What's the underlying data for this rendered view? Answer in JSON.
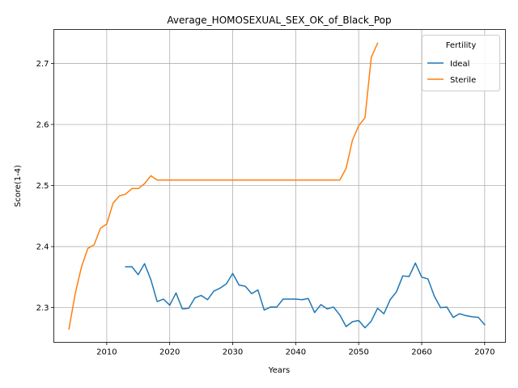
{
  "chart_data": {
    "type": "line",
    "title": "Average_HOMOSEXUAL_SEX_OK_of_Black_Pop",
    "xlabel": "Years",
    "ylabel": "Score(1-4)",
    "xlim": [
      2001.6,
      2073.3
    ],
    "ylim": [
      2.2432,
      2.7555
    ],
    "xticks": [
      2010,
      2020,
      2030,
      2040,
      2050,
      2060,
      2070
    ],
    "yticks": [
      2.3,
      2.4,
      2.5,
      2.6,
      2.7
    ],
    "ytick_labels": [
      "2.3",
      "2.4",
      "2.5",
      "2.6",
      "2.7"
    ],
    "grid": true,
    "legend": {
      "title": "Fertility",
      "position": "top-right"
    },
    "series": [
      {
        "name": "Ideal",
        "color": "#1f77b4",
        "x": [
          2013,
          2014,
          2015,
          2016,
          2017,
          2018,
          2019,
          2020,
          2021,
          2022,
          2023,
          2024,
          2025,
          2026,
          2027,
          2028,
          2029,
          2030,
          2031,
          2032,
          2033,
          2034,
          2035,
          2036,
          2037,
          2038,
          2039,
          2040,
          2041,
          2042,
          2043,
          2044,
          2045,
          2046,
          2047,
          2048,
          2049,
          2050,
          2051,
          2052,
          2053,
          2054,
          2055,
          2056,
          2057,
          2058,
          2059,
          2060,
          2061,
          2062,
          2063,
          2064,
          2065,
          2066,
          2067,
          2068,
          2069,
          2070
        ],
        "values": [
          2.367,
          2.367,
          2.354,
          2.372,
          2.346,
          2.31,
          2.314,
          2.304,
          2.324,
          2.298,
          2.299,
          2.316,
          2.32,
          2.313,
          2.327,
          2.332,
          2.339,
          2.356,
          2.337,
          2.335,
          2.323,
          2.329,
          2.296,
          2.301,
          2.301,
          2.314,
          2.314,
          2.314,
          2.313,
          2.315,
          2.292,
          2.305,
          2.298,
          2.301,
          2.288,
          2.269,
          2.277,
          2.279,
          2.267,
          2.278,
          2.299,
          2.29,
          2.313,
          2.326,
          2.352,
          2.351,
          2.373,
          2.35,
          2.347,
          2.319,
          2.3,
          2.301,
          2.284,
          2.29,
          2.287,
          2.285,
          2.284,
          2.272
        ]
      },
      {
        "name": "Sterile",
        "color": "#ff7f0e",
        "x": [
          2004,
          2005,
          2006,
          2007,
          2008,
          2009,
          2010,
          2011,
          2012,
          2013,
          2014,
          2015,
          2016,
          2017,
          2018,
          2019,
          2020,
          2021,
          2022,
          2023,
          2024,
          2025,
          2026,
          2027,
          2028,
          2029,
          2030,
          2031,
          2032,
          2033,
          2034,
          2035,
          2036,
          2037,
          2038,
          2039,
          2040,
          2041,
          2042,
          2043,
          2044,
          2045,
          2046,
          2047,
          2048,
          2049,
          2050,
          2051,
          2052,
          2053
        ],
        "values": [
          2.265,
          2.323,
          2.367,
          2.397,
          2.403,
          2.43,
          2.437,
          2.471,
          2.483,
          2.486,
          2.495,
          2.495,
          2.503,
          2.516,
          2.509,
          2.509,
          2.509,
          2.509,
          2.509,
          2.509,
          2.509,
          2.509,
          2.509,
          2.509,
          2.509,
          2.509,
          2.509,
          2.509,
          2.509,
          2.509,
          2.509,
          2.509,
          2.509,
          2.509,
          2.509,
          2.509,
          2.509,
          2.509,
          2.509,
          2.509,
          2.509,
          2.509,
          2.509,
          2.509,
          2.528,
          2.574,
          2.598,
          2.611,
          2.71,
          2.733
        ]
      }
    ]
  }
}
